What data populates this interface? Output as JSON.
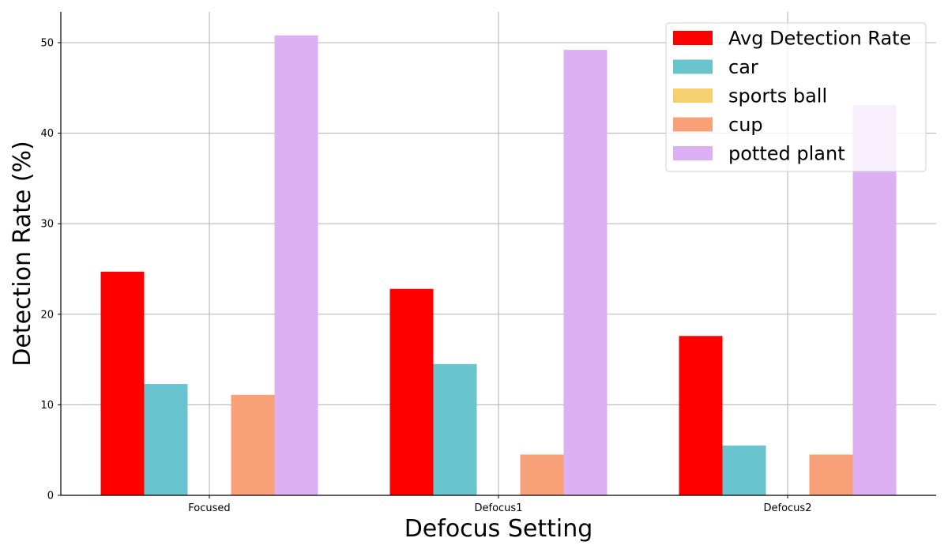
{
  "chart_data": {
    "type": "bar",
    "title": "",
    "xlabel": "Defocus Setting",
    "ylabel": "Detection Rate (%)",
    "categories": [
      "Focused",
      "Defocus1",
      "Defocus2"
    ],
    "ylim": [
      0,
      53.4
    ],
    "yticks": [
      0,
      10,
      20,
      30,
      40,
      50
    ],
    "grid": true,
    "legend_position": "top-right",
    "series": [
      {
        "name": "Avg Detection Rate",
        "color": "#ff0000",
        "values": [
          24.7,
          22.8,
          17.6
        ]
      },
      {
        "name": "car",
        "color": "#69c4cd",
        "values": [
          12.3,
          14.5,
          5.5
        ]
      },
      {
        "name": "sports ball",
        "color": "#f6d06f",
        "values": [
          0,
          0,
          0
        ]
      },
      {
        "name": "cup",
        "color": "#f8a078",
        "values": [
          11.1,
          4.5,
          4.5
        ]
      },
      {
        "name": "potted plant",
        "color": "#dcb0f2",
        "values": [
          50.8,
          49.2,
          43.1
        ]
      }
    ]
  }
}
